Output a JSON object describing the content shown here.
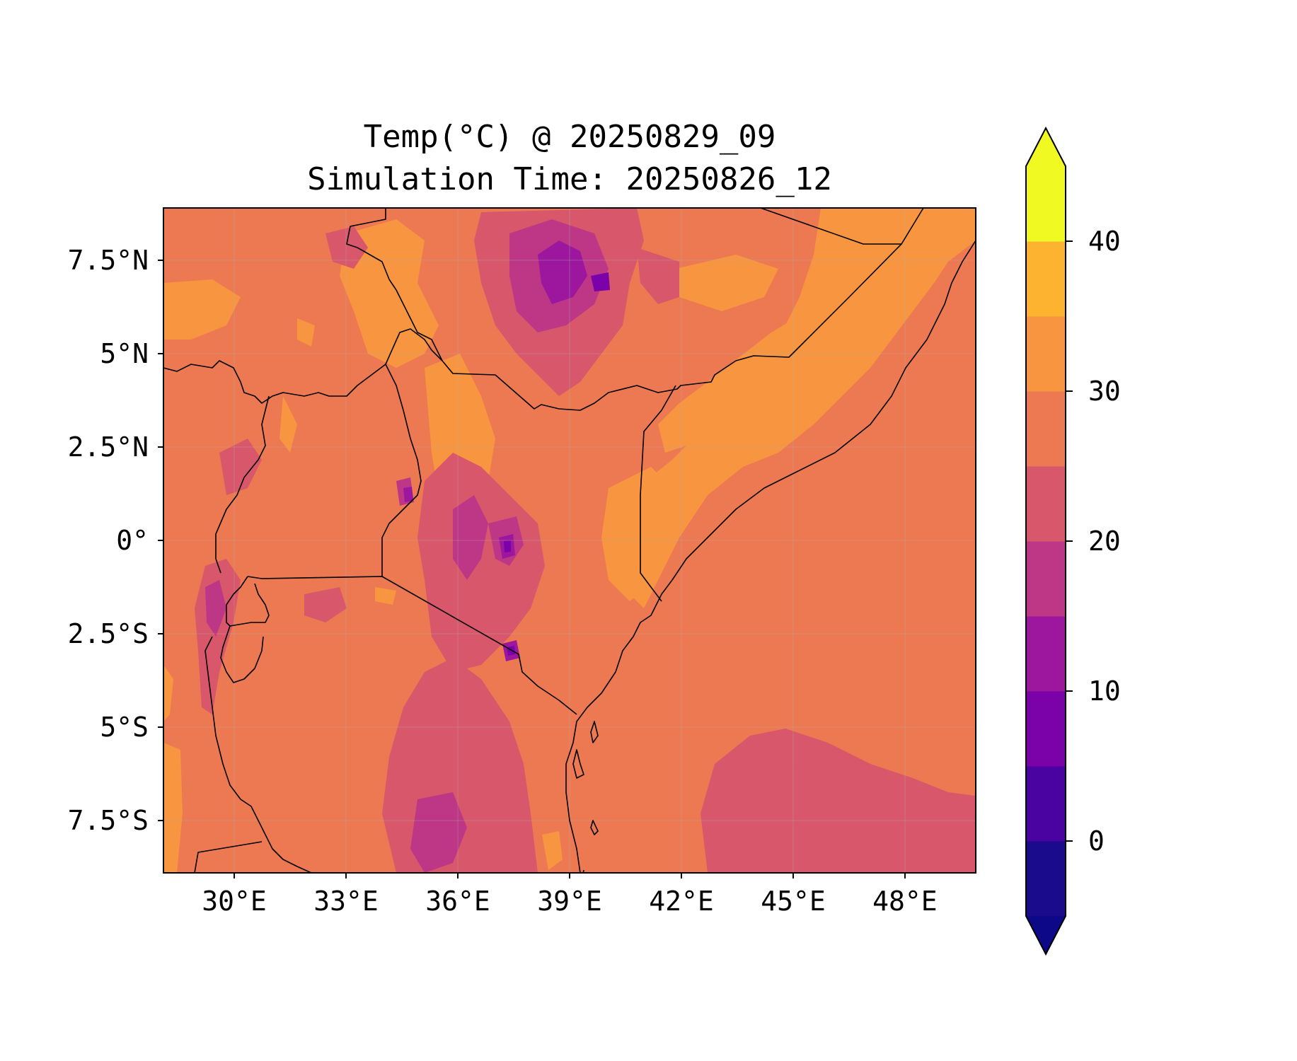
{
  "chart_data": {
    "type": "heatmap",
    "title": "Temp(°C) @ 20250829_09",
    "subtitle": "Simulation Time: 20250826_12",
    "variable": "Temperature",
    "units": "°C",
    "xlim": [
      28.1,
      49.9
    ],
    "ylim": [
      -8.9,
      8.9
    ],
    "x_ticks": [
      30,
      33,
      36,
      39,
      42,
      45,
      48
    ],
    "x_tick_labels": [
      "30°E",
      "33°E",
      "36°E",
      "39°E",
      "42°E",
      "45°E",
      "48°E"
    ],
    "y_ticks": [
      7.5,
      5,
      2.5,
      0,
      -2.5,
      -5,
      -7.5
    ],
    "y_tick_labels": [
      "7.5°N",
      "5°N",
      "2.5°N",
      "0°",
      "2.5°S",
      "5°S",
      "7.5°S"
    ],
    "grid": true,
    "colormap": "plasma",
    "colorbar": {
      "placement": "right",
      "extend": "both",
      "levels": [
        -5,
        0,
        5,
        10,
        15,
        20,
        25,
        30,
        35,
        40,
        45
      ],
      "tick_values": [
        0,
        10,
        20,
        30,
        40
      ],
      "tick_labels": [
        "0",
        "10",
        "20",
        "30",
        "40"
      ],
      "colors": [
        "#1a0a8c",
        "#4a02a0",
        "#7a02a8",
        "#9c179e",
        "#bd3786",
        "#d8576b",
        "#ed7953",
        "#f89540",
        "#fdb32f",
        "#f0f921"
      ],
      "under_color": "#0d0887",
      "over_color": "#f0f921"
    },
    "dominant_values": {
      "indian_ocean": "25–30",
      "southeast_ocean": "20–25",
      "somalia_coast": "30–35",
      "ethiopian_highlands": "5–20",
      "east_african_rift": "15–25"
    }
  }
}
